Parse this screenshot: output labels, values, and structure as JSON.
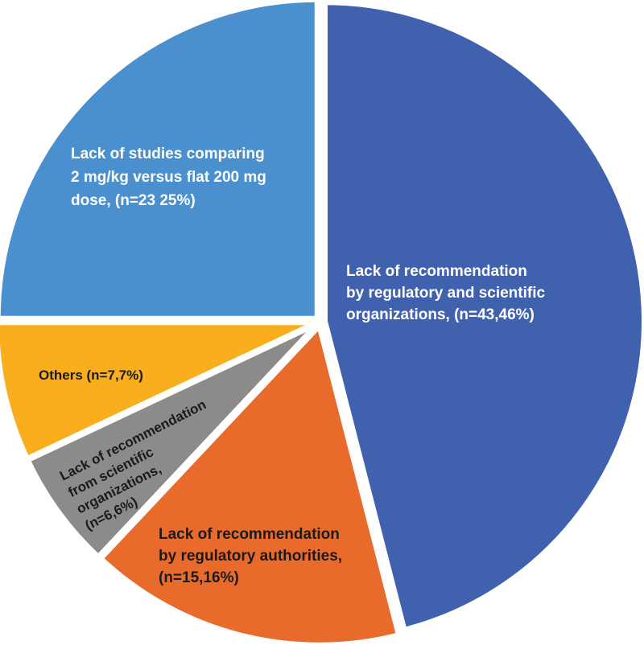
{
  "chart_data": {
    "type": "pie",
    "title": "",
    "start": "12 o'clock, clockwise",
    "slices": [
      {
        "name": "Lack of recommendation by regulatory and scientific organizations",
        "n": 43,
        "value": 46,
        "color": "#4061AD",
        "text_color": "#ffffff",
        "label_lines": [
          "Lack of recommendation",
          "by regulatory and scientific",
          "organizations, (n=43,46%)"
        ]
      },
      {
        "name": "Lack of recommendation by regulatory authorities",
        "n": 15,
        "value": 16,
        "color": "#E96B2B",
        "text_color": "#1a1a1a",
        "label_lines": [
          "Lack of recommendation",
          "by regulatory authorities,",
          "(n=15,16%)"
        ]
      },
      {
        "name": "Lack of recommendation from scientific organizations",
        "n": 6,
        "value": 6,
        "color": "#8D8B89",
        "text_color": "#1a1a1a",
        "label_lines": [
          "Lack of recommendation",
          "from scientific",
          "organizations,",
          "(n=6,6%)"
        ]
      },
      {
        "name": "Others",
        "n": 7,
        "value": 7,
        "color": "#F8AE1D",
        "text_color": "#1a1a1a",
        "label_lines": [
          "Others (n=7,7%)"
        ]
      },
      {
        "name": "Lack of studies comparing 2 mg/kg versus flat 200 mg dose",
        "n": 23,
        "value": 25,
        "color": "#4A90CF",
        "text_color": "#ffffff",
        "label_lines": [
          "Lack of studies comparing",
          "2 mg/kg versus flat 200 mg",
          "dose, (n=23 25%)"
        ]
      }
    ]
  }
}
